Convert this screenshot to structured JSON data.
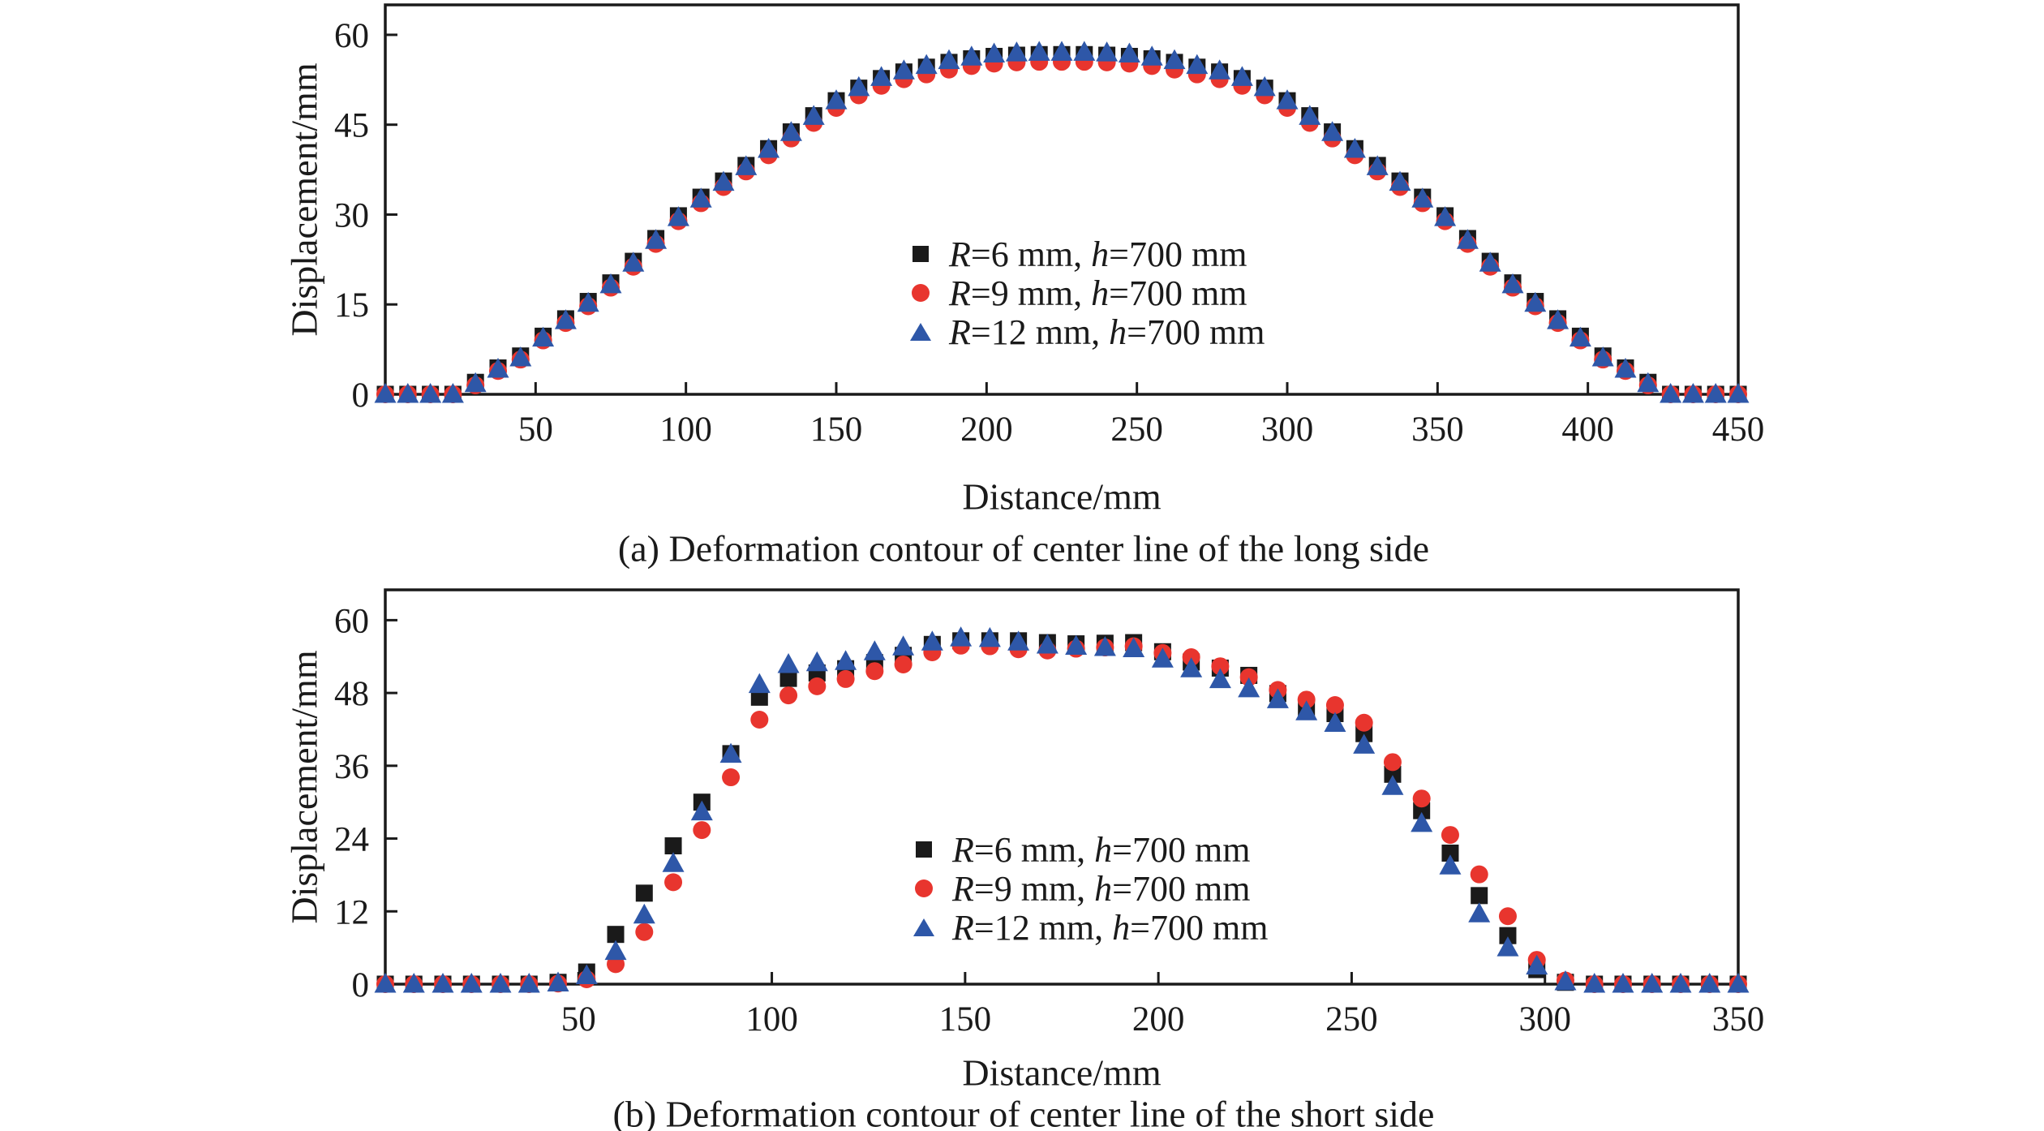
{
  "accent_colors": {
    "series_black": "#1a1a1a",
    "series_red": "#e8352e",
    "series_blue": "#2e57a8",
    "axis": "#1a1a1a"
  },
  "chart_data": [
    {
      "id": "long-side",
      "type": "scatter",
      "caption": "(a) Deformation contour of center line of the long side",
      "xlabel": "Distance/mm",
      "ylabel": "Displacement/mm",
      "xlim": [
        0,
        450
      ],
      "ylim": [
        0,
        65
      ],
      "xticks": [
        50,
        100,
        150,
        200,
        250,
        300,
        350,
        400,
        450
      ],
      "yticks": [
        0,
        15,
        30,
        45,
        60
      ],
      "grid": false,
      "legend_position": "center-right",
      "x": [
        0,
        7.5,
        15,
        22.5,
        30,
        37.5,
        45,
        52.5,
        60,
        67.5,
        75,
        82.5,
        90,
        97.5,
        105,
        112.5,
        120,
        127.5,
        135,
        142.5,
        150,
        157.5,
        165,
        172.5,
        180,
        187.5,
        195,
        202.5,
        210,
        217.5,
        225,
        232.5,
        240,
        247.5,
        255,
        262.5,
        270,
        277.5,
        285,
        292.5,
        300,
        307.5,
        315,
        322.5,
        330,
        337.5,
        345,
        352.5,
        360,
        367.5,
        375,
        382.5,
        390,
        397.5,
        405,
        412.5,
        420,
        427.5,
        435,
        442.5,
        450
      ],
      "series": [
        {
          "name": "R=6 mm, h=700 mm",
          "legend": {
            "r": "R",
            "mid": "=6 mm, ",
            "h": "h",
            "tail": "=700 mm"
          },
          "marker": "square",
          "color": "#1a1a1a",
          "values": [
            0,
            0,
            0,
            0,
            2.0,
            4.4,
            6.4,
            9.7,
            12.6,
            15.5,
            18.6,
            22.2,
            26.0,
            29.8,
            32.9,
            35.6,
            38.2,
            41.0,
            43.8,
            46.5,
            49.0,
            51.1,
            52.7,
            53.8,
            54.6,
            55.4,
            56.0,
            56.4,
            56.6,
            56.7,
            56.7,
            56.7,
            56.6,
            56.4,
            56.0,
            55.4,
            54.6,
            53.8,
            52.7,
            51.1,
            49.0,
            46.5,
            43.8,
            41.0,
            38.2,
            35.6,
            32.9,
            29.8,
            26.0,
            22.2,
            18.6,
            15.5,
            12.6,
            9.7,
            6.4,
            4.4,
            2.0,
            0,
            0,
            0,
            0
          ]
        },
        {
          "name": "R=9 mm, h=700 mm",
          "legend": {
            "r": "R",
            "mid": "=9 mm, ",
            "h": "h",
            "tail": "=700 mm"
          },
          "marker": "circle",
          "color": "#e8352e",
          "values": [
            0,
            0,
            0,
            0,
            1.5,
            3.9,
            5.8,
            9.0,
            11.9,
            14.7,
            17.8,
            21.3,
            25.1,
            28.9,
            31.9,
            34.6,
            37.2,
            39.9,
            42.7,
            45.3,
            47.8,
            49.9,
            51.5,
            52.6,
            53.4,
            54.2,
            54.8,
            55.2,
            55.4,
            55.5,
            55.5,
            55.5,
            55.4,
            55.2,
            54.8,
            54.2,
            53.4,
            52.6,
            51.5,
            49.9,
            47.8,
            45.3,
            42.7,
            39.9,
            37.2,
            34.6,
            31.9,
            28.9,
            25.1,
            21.3,
            17.8,
            14.7,
            11.9,
            9.0,
            5.8,
            3.9,
            1.5,
            0,
            0,
            0,
            0
          ]
        },
        {
          "name": "R=12 mm, h=700 mm",
          "legend": {
            "r": "R",
            "mid": "=12 mm, ",
            "h": "h",
            "tail": "=700 mm"
          },
          "marker": "triangle",
          "color": "#2e57a8",
          "values": [
            0,
            0,
            0,
            0,
            1.8,
            4.2,
            6.1,
            9.4,
            12.3,
            15.2,
            18.3,
            21.9,
            25.7,
            29.5,
            32.6,
            35.4,
            38.0,
            40.9,
            43.7,
            46.4,
            49.0,
            51.2,
            52.9,
            54.0,
            54.9,
            55.7,
            56.3,
            56.8,
            57.0,
            57.1,
            57.1,
            57.1,
            57.0,
            56.8,
            56.3,
            55.7,
            54.9,
            54.0,
            52.9,
            51.2,
            49.0,
            46.4,
            43.7,
            40.9,
            38.0,
            35.4,
            32.6,
            29.5,
            25.7,
            21.9,
            18.3,
            15.2,
            12.3,
            9.4,
            6.1,
            4.2,
            1.8,
            0,
            0,
            0,
            0
          ]
        }
      ]
    },
    {
      "id": "short-side",
      "type": "scatter",
      "caption": "(b) Deformation contour of center line of the short side",
      "xlabel": "Distance/mm",
      "ylabel": "Displacement/mm",
      "xlim": [
        0,
        350
      ],
      "ylim": [
        0,
        65
      ],
      "xticks": [
        50,
        100,
        150,
        200,
        250,
        300,
        350
      ],
      "yticks": [
        0,
        12,
        24,
        36,
        48,
        60
      ],
      "grid": false,
      "legend_position": "center-right",
      "x": [
        0,
        7.4,
        14.9,
        22.3,
        29.8,
        37.2,
        44.7,
        52.1,
        59.6,
        67.0,
        74.5,
        81.9,
        89.4,
        96.8,
        104.3,
        111.7,
        119.1,
        126.6,
        134.0,
        141.5,
        148.9,
        156.4,
        163.8,
        171.3,
        178.7,
        186.2,
        193.6,
        201.1,
        208.5,
        216.0,
        223.4,
        230.9,
        238.3,
        245.7,
        253.2,
        260.6,
        268.1,
        275.5,
        283.0,
        290.4,
        297.9,
        305.3,
        312.8,
        320.2,
        327.7,
        335.1,
        342.6,
        350.0
      ],
      "series": [
        {
          "name": "R=6 mm, h=700 mm",
          "legend": {
            "r": "R",
            "mid": "=6 mm, ",
            "h": "h",
            "tail": "=700 mm"
          },
          "marker": "square",
          "color": "#1a1a1a",
          "values": [
            0,
            0,
            0,
            0,
            0,
            0,
            0.3,
            2.0,
            8.2,
            15.0,
            22.8,
            30.0,
            38.0,
            47.3,
            50.4,
            51.3,
            52.0,
            53.0,
            54.2,
            56.0,
            56.6,
            56.6,
            56.6,
            56.3,
            56.1,
            56.2,
            56.3,
            54.8,
            53.1,
            52.1,
            50.9,
            47.9,
            45.4,
            44.6,
            41.3,
            34.6,
            28.6,
            21.6,
            14.6,
            8.0,
            2.4,
            0.3,
            0,
            0,
            0,
            0,
            0,
            0
          ]
        },
        {
          "name": "R=9 mm, h=700 mm",
          "legend": {
            "r": "R",
            "mid": "=9 mm, ",
            "h": "h",
            "tail": "=700 mm"
          },
          "marker": "circle",
          "color": "#e8352e",
          "values": [
            0,
            0,
            0,
            0,
            0,
            0,
            0.1,
            0.8,
            3.3,
            8.6,
            16.8,
            25.4,
            34.1,
            43.6,
            47.6,
            49.1,
            50.3,
            51.6,
            52.7,
            54.7,
            55.8,
            55.7,
            55.2,
            55.0,
            55.3,
            55.5,
            55.7,
            54.6,
            53.9,
            52.4,
            50.6,
            48.5,
            46.9,
            46.0,
            43.1,
            36.6,
            30.6,
            24.6,
            18.1,
            11.2,
            4.0,
            0.6,
            0,
            0,
            0,
            0,
            0,
            0
          ]
        },
        {
          "name": "R=12 mm, h=700 mm",
          "legend": {
            "r": "R",
            "mid": "=12 mm, ",
            "h": "h",
            "tail": "=700 mm"
          },
          "marker": "triangle",
          "color": "#2e57a8",
          "values": [
            0,
            0,
            0,
            0,
            0,
            0,
            0.2,
            1.4,
            5.4,
            11.4,
            19.9,
            28.4,
            37.9,
            49.4,
            52.7,
            53.0,
            53.2,
            54.8,
            55.6,
            56.4,
            57.1,
            57.0,
            56.4,
            55.9,
            55.7,
            55.5,
            55.3,
            53.6,
            52.0,
            50.2,
            48.7,
            46.9,
            44.9,
            43.0,
            39.4,
            32.6,
            26.5,
            19.5,
            11.6,
            6.0,
            3.0,
            0.4,
            0,
            0,
            0,
            0,
            0,
            0
          ]
        }
      ]
    }
  ]
}
